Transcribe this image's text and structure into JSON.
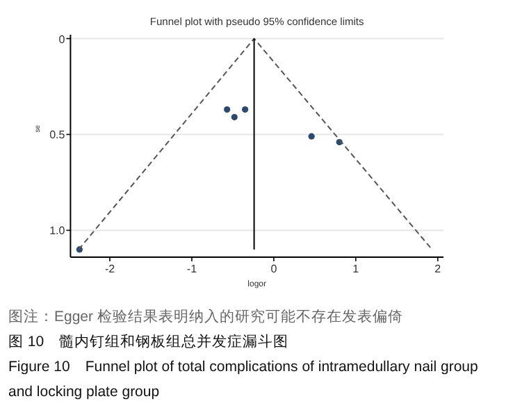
{
  "chart_data": {
    "type": "scatter",
    "title": "Funnel plot with pseudo 95% confidence limits",
    "xlabel": "logor",
    "ylabel": "se",
    "xlim": [
      -2.48,
      2.07
    ],
    "ylim": [
      1.14,
      -0.02
    ],
    "xticks": [
      -2,
      -1,
      0,
      1,
      2
    ],
    "yticks": [
      0,
      0.5,
      {
        "value": 1,
        "label": "1.0"
      }
    ],
    "grid": "y",
    "series": [
      {
        "marker": "circle",
        "color": "#2b4a6e",
        "x": [
          -0.57,
          -0.48,
          -0.35,
          0.46,
          0.8,
          -2.37
        ],
        "values": [
          0.37,
          0.41,
          0.37,
          0.51,
          0.54,
          1.1
        ]
      },
      {
        "type": "line",
        "color": "#555555",
        "line_style": "dashed",
        "x": [
          -2.38,
          -0.24,
          1.93
        ],
        "values": [
          1.1,
          0,
          1.1
        ]
      },
      {
        "type": "line",
        "color": "#000000",
        "line_style": "solid",
        "x": [
          -0.24,
          -0.24
        ],
        "values": [
          0,
          1.1
        ]
      }
    ],
    "annotations": [
      "图注：Egger 检验结果表明纳入的研究可能不存在发表偏倚",
      "图 10　髓内钉组和钢板组总并发症漏斗图",
      "Figure 10　Funnel plot of total complications of intramedullary nail group and locking plate group"
    ]
  }
}
